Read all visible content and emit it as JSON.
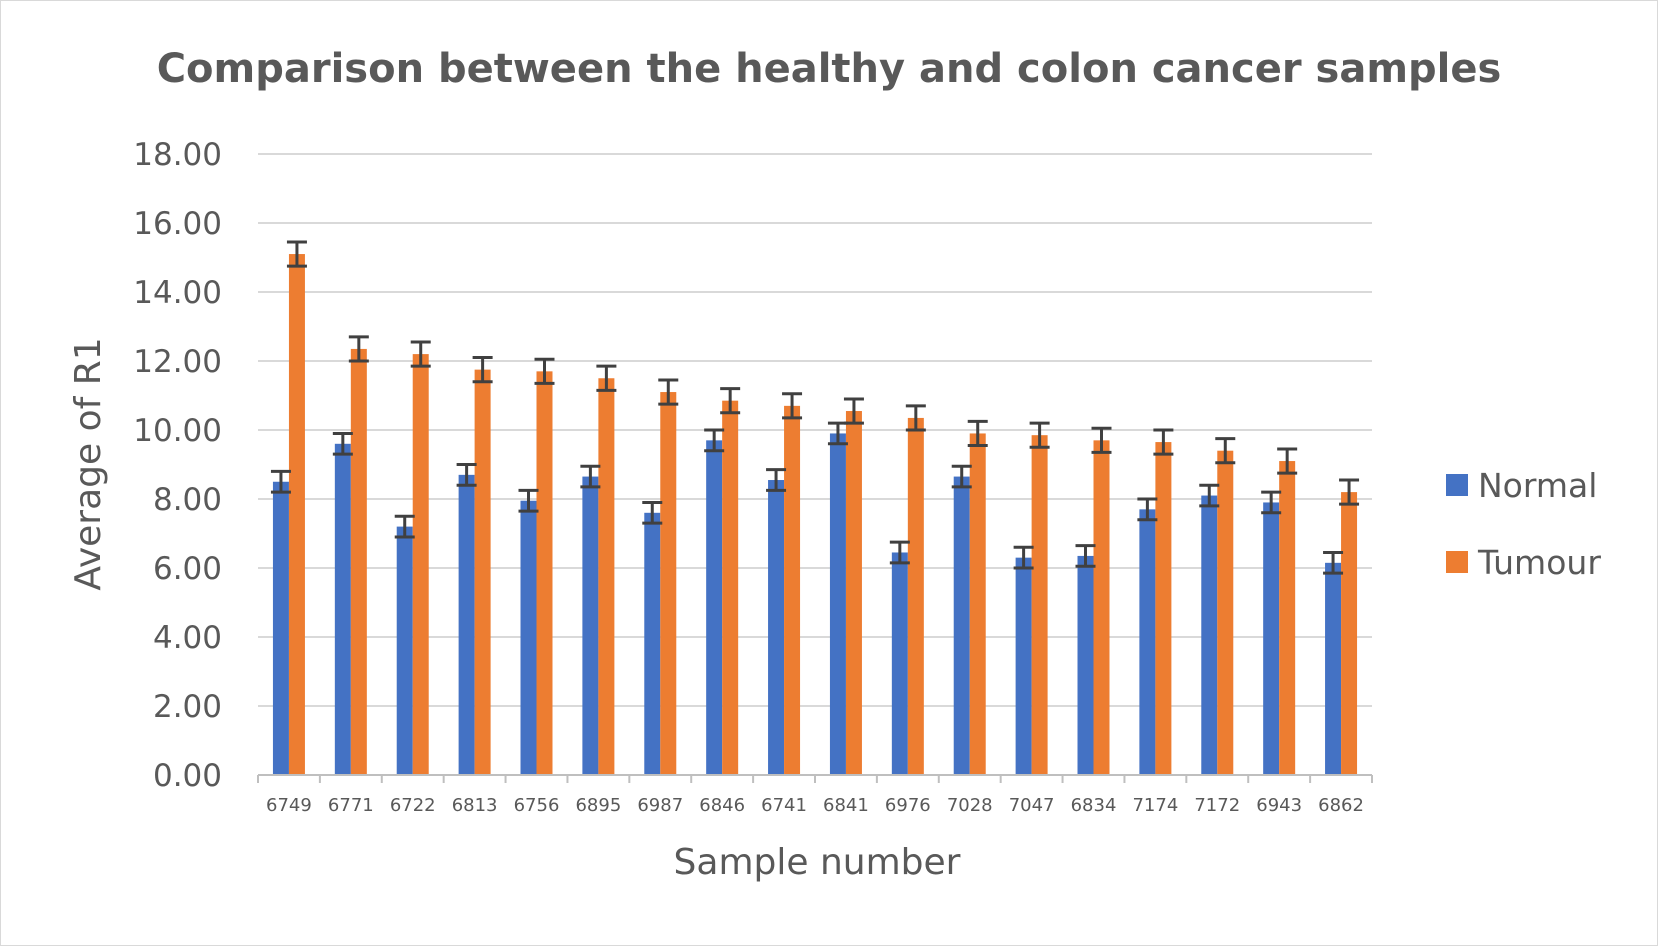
{
  "chart_data": {
    "type": "bar",
    "title": "Comparison between the healthy and colon cancer samples",
    "xlabel": "Sample number",
    "ylabel": "Average of R1",
    "ylim": [
      0,
      18
    ],
    "yticks": [
      "0.00",
      "2.00",
      "4.00",
      "6.00",
      "8.00",
      "10.00",
      "12.00",
      "14.00",
      "16.00",
      "18.00"
    ],
    "grid": true,
    "legend_position": "right",
    "categories": [
      "6749",
      "6771",
      "6722",
      "6813",
      "6756",
      "6895",
      "6987",
      "6846",
      "6741",
      "6841",
      "6976",
      "7028",
      "7047",
      "6834",
      "7174",
      "7172",
      "6943",
      "6862"
    ],
    "series": [
      {
        "name": "Normal",
        "color": "#4472c4",
        "values": [
          8.5,
          9.6,
          7.2,
          8.7,
          7.95,
          8.65,
          7.6,
          9.7,
          8.55,
          9.9,
          6.45,
          8.65,
          6.3,
          6.35,
          7.7,
          8.1,
          7.9,
          6.15
        ],
        "errors": [
          0.3,
          0.3,
          0.3,
          0.3,
          0.3,
          0.3,
          0.3,
          0.3,
          0.3,
          0.3,
          0.3,
          0.3,
          0.3,
          0.3,
          0.3,
          0.3,
          0.3,
          0.3
        ]
      },
      {
        "name": "Tumour",
        "color": "#ed7d31",
        "values": [
          15.1,
          12.35,
          12.2,
          11.75,
          11.7,
          11.5,
          11.1,
          10.85,
          10.7,
          10.55,
          10.35,
          9.9,
          9.85,
          9.7,
          9.65,
          9.4,
          9.1,
          8.2
        ],
        "errors": [
          0.35,
          0.35,
          0.35,
          0.35,
          0.35,
          0.35,
          0.35,
          0.35,
          0.35,
          0.35,
          0.35,
          0.35,
          0.35,
          0.35,
          0.35,
          0.35,
          0.35,
          0.35
        ]
      }
    ]
  }
}
